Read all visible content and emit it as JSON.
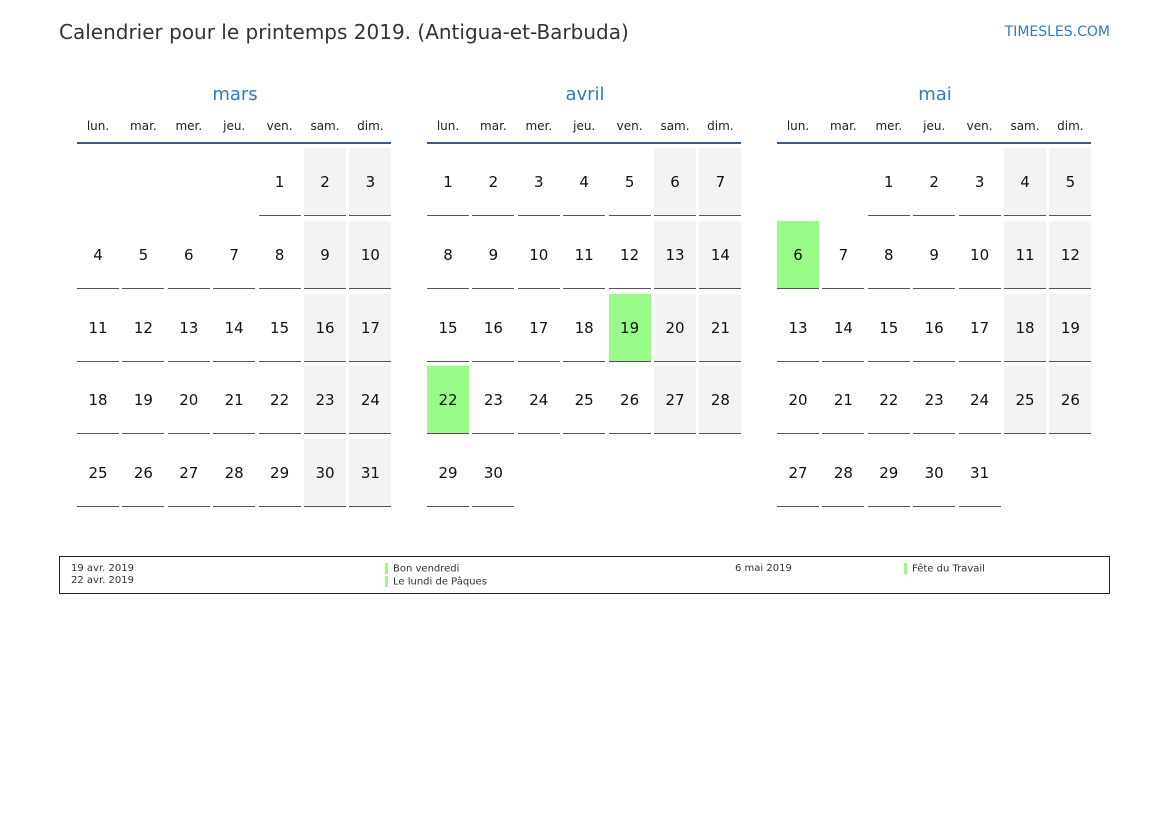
{
  "header": {
    "title": "Calendrier pour le printemps 2019. (Antigua-et-Barbuda)",
    "brand": "TIMESLES.COM"
  },
  "colors": {
    "accent": "#2f7bc4",
    "holiday": "#99fb88",
    "weekend": "#f3f3f3",
    "header_line": "#3a5a88"
  },
  "weekdays": [
    "lun.",
    "mar.",
    "mer.",
    "jeu.",
    "ven.",
    "sam.",
    "dim."
  ],
  "months": [
    {
      "name": "mars",
      "first_weekday": 4,
      "days": 31,
      "holidays": []
    },
    {
      "name": "avril",
      "first_weekday": 0,
      "days": 30,
      "holidays": [
        19,
        22
      ]
    },
    {
      "name": "mai",
      "first_weekday": 2,
      "days": 31,
      "holidays": [
        6
      ]
    }
  ],
  "legend": [
    {
      "dates": [
        "19 avr. 2019",
        "22 avr. 2019"
      ],
      "names": [
        "Bon vendredi",
        "Le lundi de Pâques"
      ]
    },
    {
      "dates": [
        "6 mai 2019"
      ],
      "names": [
        "Fête du Travail"
      ]
    }
  ]
}
